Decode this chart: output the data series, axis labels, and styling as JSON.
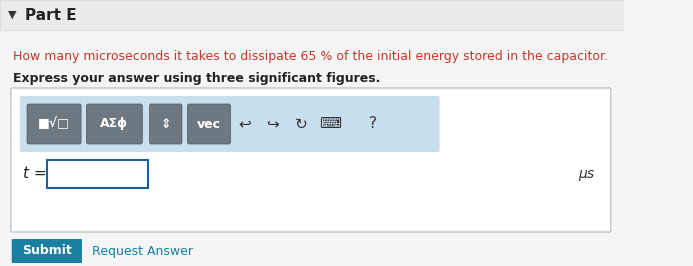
{
  "bg_color": "#f5f5f5",
  "white": "#ffffff",
  "part_label": "Part E",
  "question_text": "How many microseconds it takes to dissipate 65 % of the initial energy stored in the capacitor.",
  "question_color": "#c0392b",
  "bold_text": "Express your answer using three significant figures.",
  "t_label": "t =",
  "unit_label": "μs",
  "submit_label": "Submit",
  "submit_bg": "#1a7fa0",
  "submit_text_color": "#ffffff",
  "request_label": "Request Answer",
  "request_color": "#1a7fa0",
  "toolbar_bg": "#c8dff0",
  "btn_bg": "#6d7880",
  "btn_labels": [
    "■√□",
    "AΣϕ",
    "⇕",
    "vec"
  ],
  "icon_symbols": [
    "↺",
    "↻",
    "⟳",
    "⌹",
    "?"
  ],
  "input_border": "#1a5fa0",
  "outer_box_border": "#cccccc",
  "triangle_color": "#333333"
}
